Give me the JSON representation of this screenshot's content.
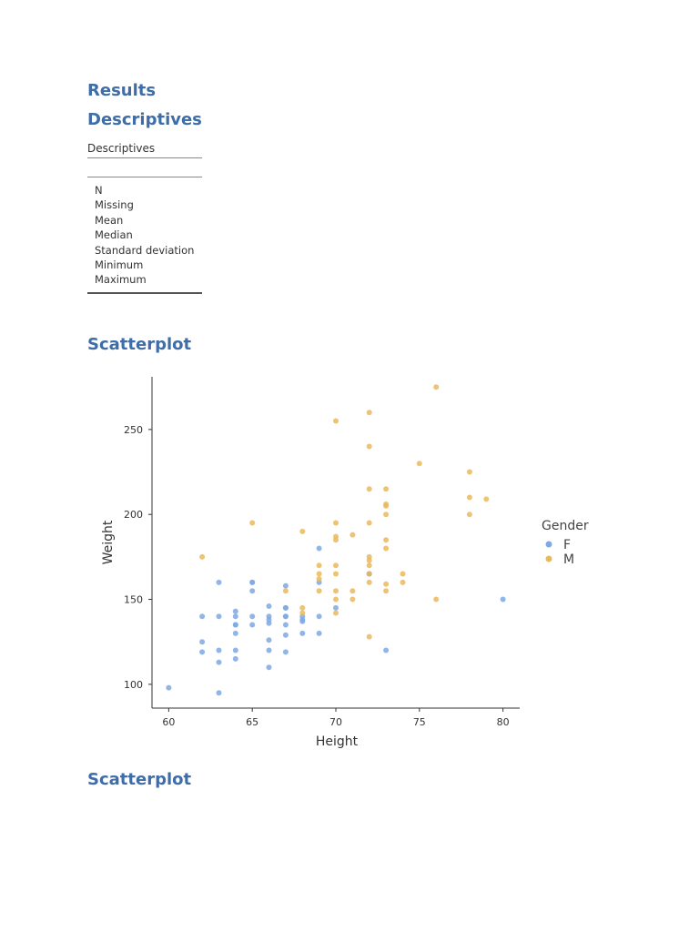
{
  "headings": {
    "results": "Results",
    "descriptives": "Descriptives",
    "scatterplot_1": "Scatterplot",
    "scatterplot_2": "Scatterplot"
  },
  "descriptives_table": {
    "title": "Descriptives",
    "rows": [
      "N",
      "Missing",
      "Mean",
      "Median",
      "Standard deviation",
      "Minimum",
      "Maximum"
    ]
  },
  "colors": {
    "heading": "#3e6da8",
    "F": "#7fa8e4",
    "M": "#eab85c",
    "axis": "#333333"
  },
  "chart_data": {
    "type": "scatter",
    "title": "",
    "xlabel": "Height",
    "ylabel": "Weight",
    "xlim": [
      59,
      81
    ],
    "ylim": [
      86,
      281
    ],
    "xticks": [
      60,
      65,
      70,
      75,
      80
    ],
    "yticks": [
      100,
      150,
      200,
      250
    ],
    "grid": false,
    "legend": {
      "title": "Gender",
      "position": "right",
      "entries": [
        "F",
        "M"
      ]
    },
    "series": [
      {
        "name": "F",
        "points": [
          [
            60,
            98
          ],
          [
            62,
            140
          ],
          [
            62,
            125
          ],
          [
            62,
            119
          ],
          [
            63,
            160
          ],
          [
            63,
            140
          ],
          [
            63,
            120
          ],
          [
            63,
            113
          ],
          [
            63,
            95
          ],
          [
            64,
            143
          ],
          [
            64,
            140
          ],
          [
            64,
            135
          ],
          [
            64,
            135
          ],
          [
            64,
            130
          ],
          [
            64,
            120
          ],
          [
            64,
            115
          ],
          [
            65,
            160
          ],
          [
            65,
            160
          ],
          [
            65,
            155
          ],
          [
            65,
            140
          ],
          [
            65,
            135
          ],
          [
            66,
            146
          ],
          [
            66,
            140
          ],
          [
            66,
            138
          ],
          [
            66,
            136
          ],
          [
            66,
            126
          ],
          [
            66,
            120
          ],
          [
            66,
            110
          ],
          [
            67,
            158
          ],
          [
            67,
            145
          ],
          [
            67,
            145
          ],
          [
            67,
            140
          ],
          [
            67,
            140
          ],
          [
            67,
            135
          ],
          [
            67,
            129
          ],
          [
            67,
            119
          ],
          [
            68,
            140
          ],
          [
            68,
            138
          ],
          [
            68,
            137
          ],
          [
            68,
            130
          ],
          [
            69,
            180
          ],
          [
            69,
            160
          ],
          [
            69,
            140
          ],
          [
            69,
            130
          ],
          [
            70,
            145
          ],
          [
            72,
            165
          ],
          [
            72,
            165
          ],
          [
            73,
            120
          ],
          [
            80,
            150
          ]
        ]
      },
      {
        "name": "M",
        "points": [
          [
            62,
            175
          ],
          [
            65,
            195
          ],
          [
            67,
            155
          ],
          [
            68,
            190
          ],
          [
            68,
            145
          ],
          [
            68,
            142
          ],
          [
            69,
            170
          ],
          [
            69,
            165
          ],
          [
            69,
            162
          ],
          [
            69,
            155
          ],
          [
            70,
            255
          ],
          [
            70,
            195
          ],
          [
            70,
            187
          ],
          [
            70,
            185
          ],
          [
            70,
            170
          ],
          [
            70,
            165
          ],
          [
            70,
            155
          ],
          [
            70,
            150
          ],
          [
            70,
            142
          ],
          [
            71,
            188
          ],
          [
            71,
            155
          ],
          [
            71,
            150
          ],
          [
            72,
            260
          ],
          [
            72,
            240
          ],
          [
            72,
            215
          ],
          [
            72,
            195
          ],
          [
            72,
            175
          ],
          [
            72,
            173
          ],
          [
            72,
            170
          ],
          [
            72,
            165
          ],
          [
            72,
            160
          ],
          [
            72,
            128
          ],
          [
            73,
            215
          ],
          [
            73,
            206
          ],
          [
            73,
            205
          ],
          [
            73,
            200
          ],
          [
            73,
            185
          ],
          [
            73,
            180
          ],
          [
            73,
            159
          ],
          [
            73,
            155
          ],
          [
            74,
            165
          ],
          [
            74,
            160
          ],
          [
            75,
            230
          ],
          [
            76,
            275
          ],
          [
            76,
            150
          ],
          [
            78,
            225
          ],
          [
            78,
            210
          ],
          [
            78,
            200
          ],
          [
            79,
            209
          ]
        ]
      }
    ]
  }
}
